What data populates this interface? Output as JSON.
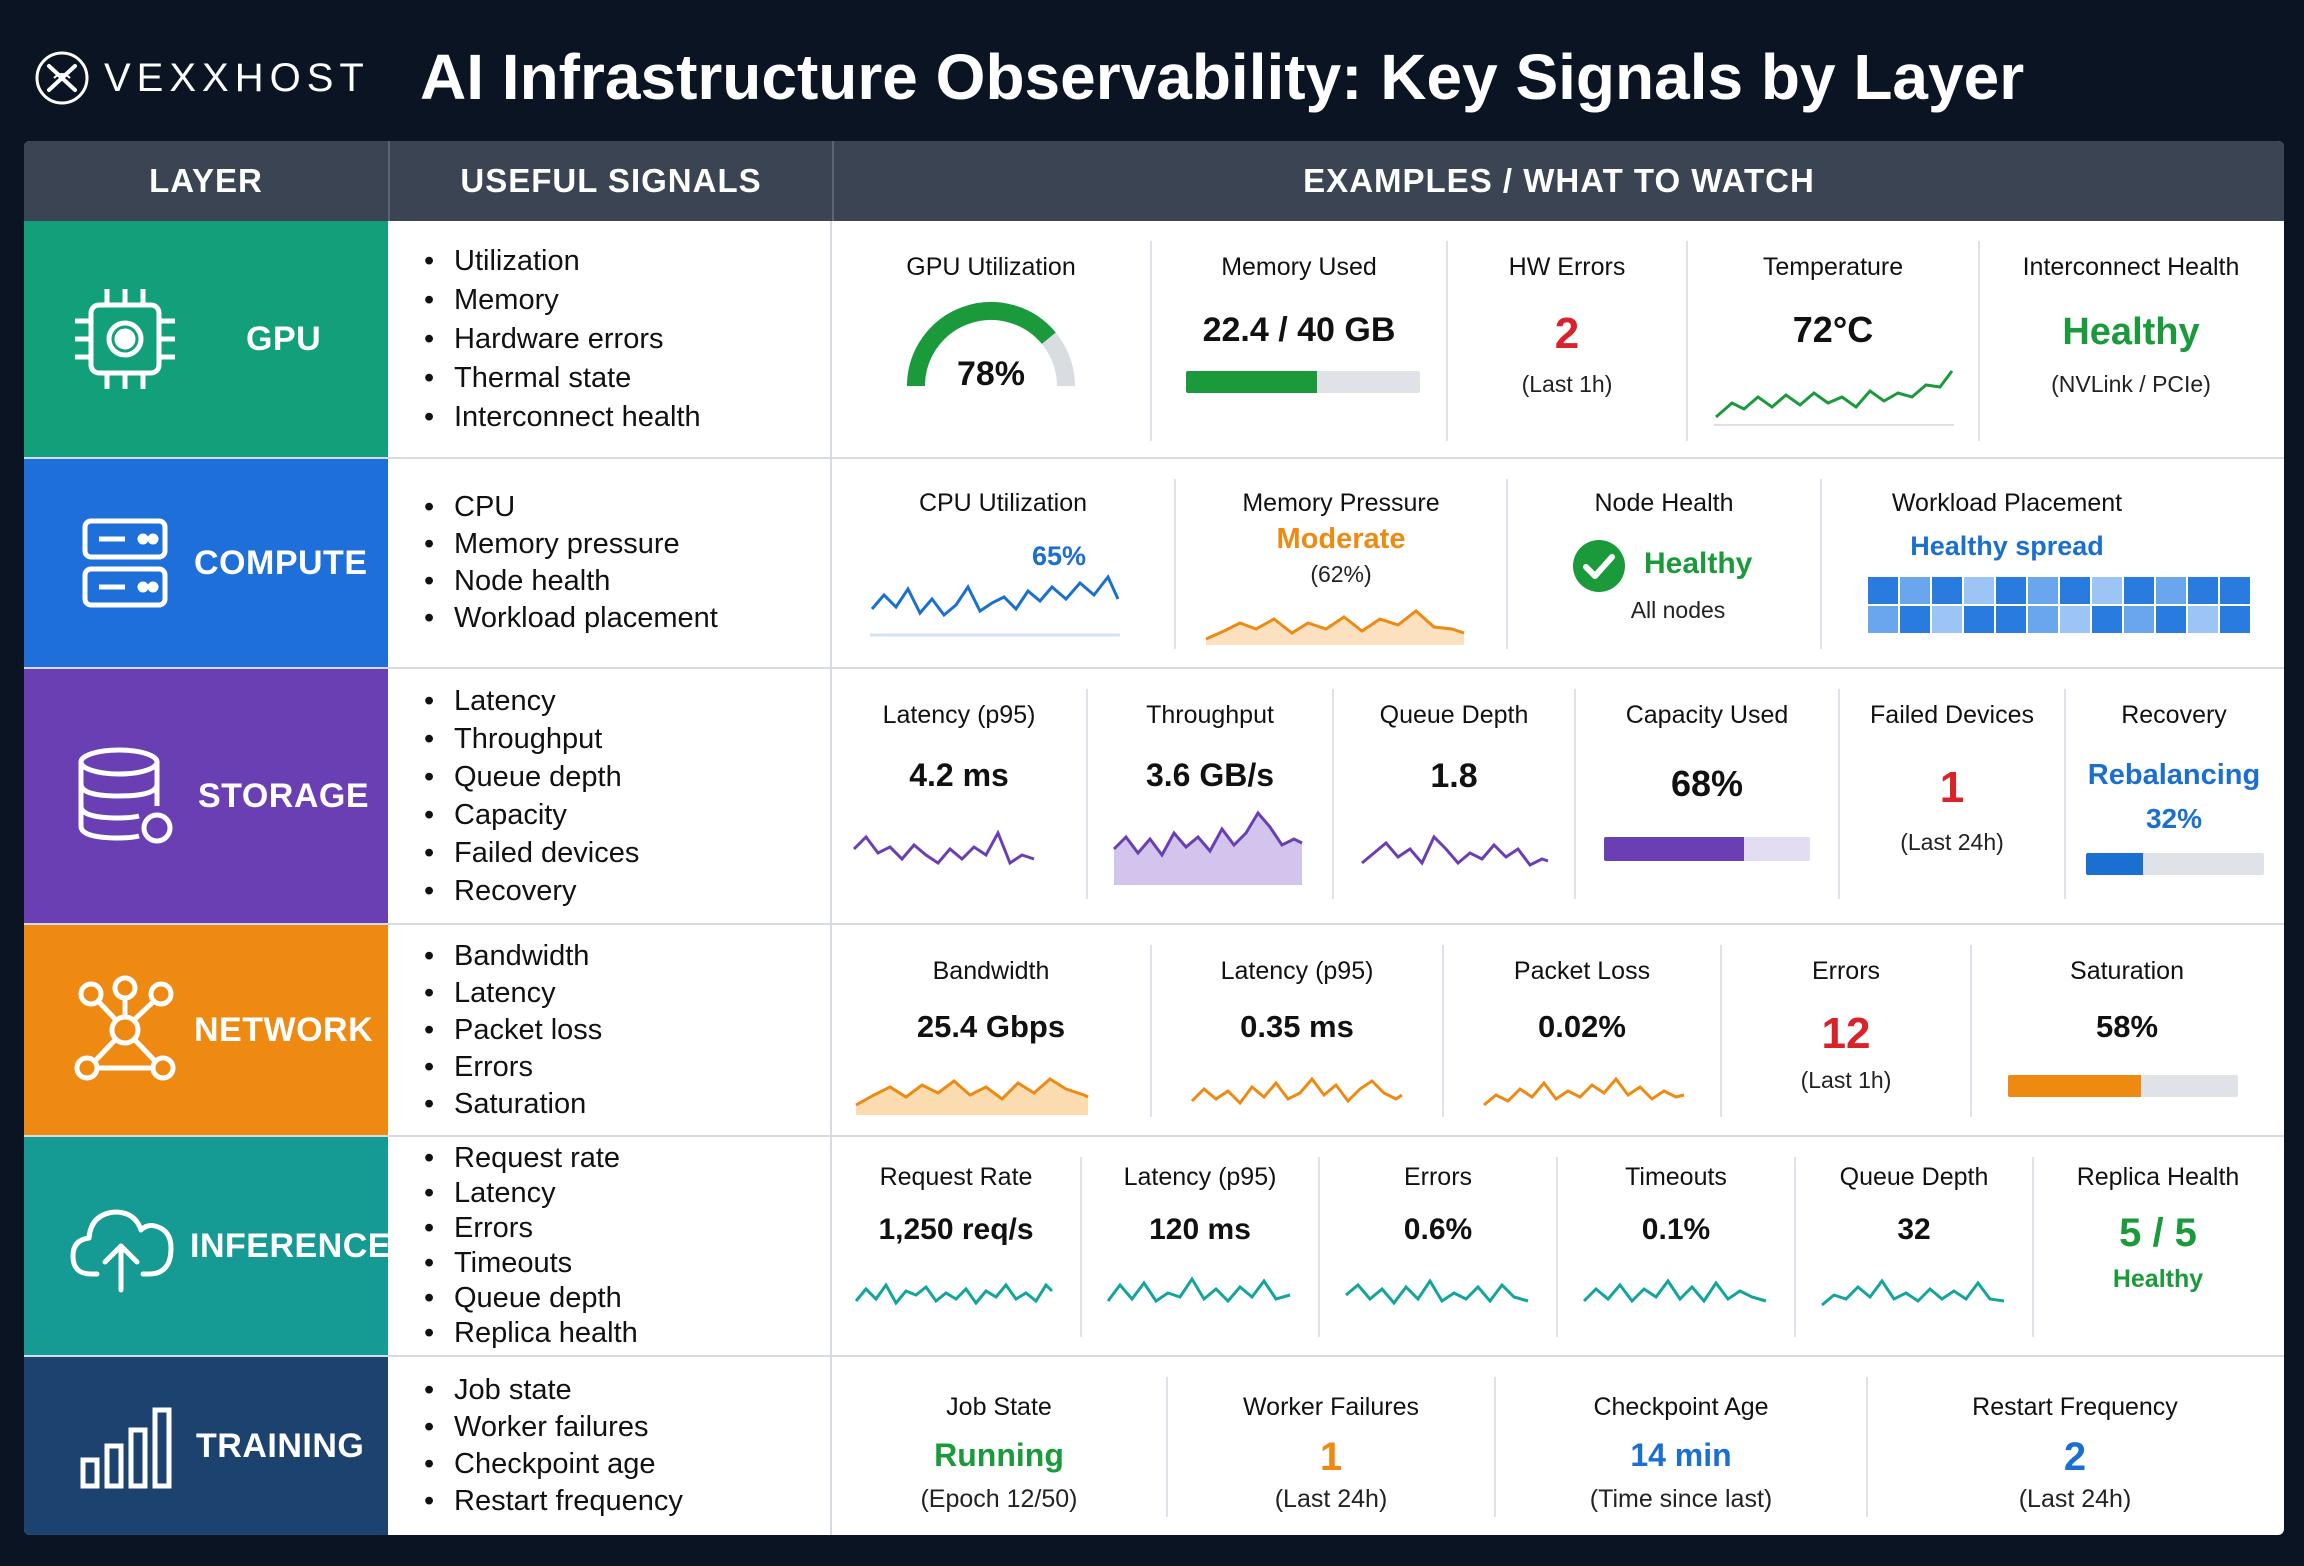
{
  "brand": {
    "name": "VEXXHOST",
    "logo_icon": "vexxhost-logo-icon"
  },
  "title": "AI Infrastructure Observability: Key Signals by Layer",
  "header": {
    "layer": "LAYER",
    "signals": "USEFUL SIGNALS",
    "examples": "EXAMPLES / WHAT TO WATCH"
  },
  "colors": {
    "gpu": "#12a07a",
    "compute": "#1e6fd9",
    "storage": "#6a3fb3",
    "network": "#ee8a12",
    "inference": "#159a94",
    "training": "#1c4270",
    "green": "#1a9a3a",
    "red": "#d8232a",
    "orange": "#ee8a12",
    "blue": "#1a6fd0",
    "purple": "#6a3fb3",
    "teal": "#13a59c"
  },
  "layers": {
    "gpu": {
      "name": "GPU",
      "icon": "chip-icon",
      "signals": [
        "Utilization",
        "Memory",
        "Hardware errors",
        "Thermal state",
        "Interconnect health"
      ],
      "metrics": {
        "util": {
          "label": "GPU Utilization",
          "value": "78%",
          "level": 0.78
        },
        "mem": {
          "label": "Memory Used",
          "value": "22.4 / 40 GB",
          "level": 0.56
        },
        "hw": {
          "label": "HW Errors",
          "value": "2",
          "sub": "(Last 1h)"
        },
        "temp": {
          "label": "Temperature",
          "value": "72°C"
        },
        "ic": {
          "label": "Interconnect Health",
          "value": "Healthy",
          "sub": "(NVLink / PCIe)"
        }
      }
    },
    "compute": {
      "name": "COMPUTE",
      "icon": "server-icon",
      "signals": [
        "CPU",
        "Memory pressure",
        "Node health",
        "Workload placement"
      ],
      "metrics": {
        "cpu": {
          "label": "CPU Utilization",
          "value": "65%"
        },
        "mp": {
          "label": "Memory Pressure",
          "value": "Moderate",
          "sub": "(62%)"
        },
        "nh": {
          "label": "Node Health",
          "value": "Healthy",
          "sub": "All nodes"
        },
        "wp": {
          "label": "Workload Placement",
          "value": "Healthy spread"
        }
      }
    },
    "storage": {
      "name": "STORAGE",
      "icon": "database-icon",
      "signals": [
        "Latency",
        "Throughput",
        "Queue depth",
        "Capacity",
        "Failed devices",
        "Recovery"
      ],
      "metrics": {
        "lat": {
          "label": "Latency (p95)",
          "value": "4.2 ms"
        },
        "thr": {
          "label": "Throughput",
          "value": "3.6 GB/s"
        },
        "qd": {
          "label": "Queue Depth",
          "value": "1.8"
        },
        "cap": {
          "label": "Capacity Used",
          "value": "68%",
          "level": 0.68
        },
        "fd": {
          "label": "Failed Devices",
          "value": "1",
          "sub": "(Last 24h)"
        },
        "rec": {
          "label": "Recovery",
          "value": "Rebalancing",
          "sub": "32%",
          "level": 0.32
        }
      }
    },
    "network": {
      "name": "NETWORK",
      "icon": "network-icon",
      "signals": [
        "Bandwidth",
        "Latency",
        "Packet loss",
        "Errors",
        "Saturation"
      ],
      "metrics": {
        "bw": {
          "label": "Bandwidth",
          "value": "25.4 Gbps"
        },
        "lat": {
          "label": "Latency (p95)",
          "value": "0.35 ms"
        },
        "pl": {
          "label": "Packet Loss",
          "value": "0.02%"
        },
        "err": {
          "label": "Errors",
          "value": "12",
          "sub": "(Last 1h)"
        },
        "sat": {
          "label": "Saturation",
          "value": "58%",
          "level": 0.58
        }
      }
    },
    "inference": {
      "name": "INFERENCE",
      "icon": "cloud-upload-icon",
      "signals": [
        "Request rate",
        "Latency",
        "Errors",
        "Timeouts",
        "Queue depth",
        "Replica health"
      ],
      "metrics": {
        "rr": {
          "label": "Request Rate",
          "value": "1,250 req/s"
        },
        "lat": {
          "label": "Latency (p95)",
          "value": "120 ms"
        },
        "err": {
          "label": "Errors",
          "value": "0.6%"
        },
        "to": {
          "label": "Timeouts",
          "value": "0.1%"
        },
        "qd": {
          "label": "Queue Depth",
          "value": "32"
        },
        "rh": {
          "label": "Replica Health",
          "value": "5 / 5",
          "sub": "Healthy"
        }
      }
    },
    "training": {
      "name": "TRAINING",
      "icon": "bar-chart-icon",
      "signals": [
        "Job state",
        "Worker failures",
        "Checkpoint age",
        "Restart frequency"
      ],
      "metrics": {
        "js": {
          "label": "Job State",
          "value": "Running",
          "sub": "(Epoch 12/50)"
        },
        "wf": {
          "label": "Worker Failures",
          "value": "1",
          "sub": "(Last 24h)"
        },
        "ca": {
          "label": "Checkpoint Age",
          "value": "14 min",
          "sub": "(Time since last)"
        },
        "rf": {
          "label": "Restart Frequency",
          "value": "2",
          "sub": "(Last 24h)"
        }
      }
    }
  }
}
